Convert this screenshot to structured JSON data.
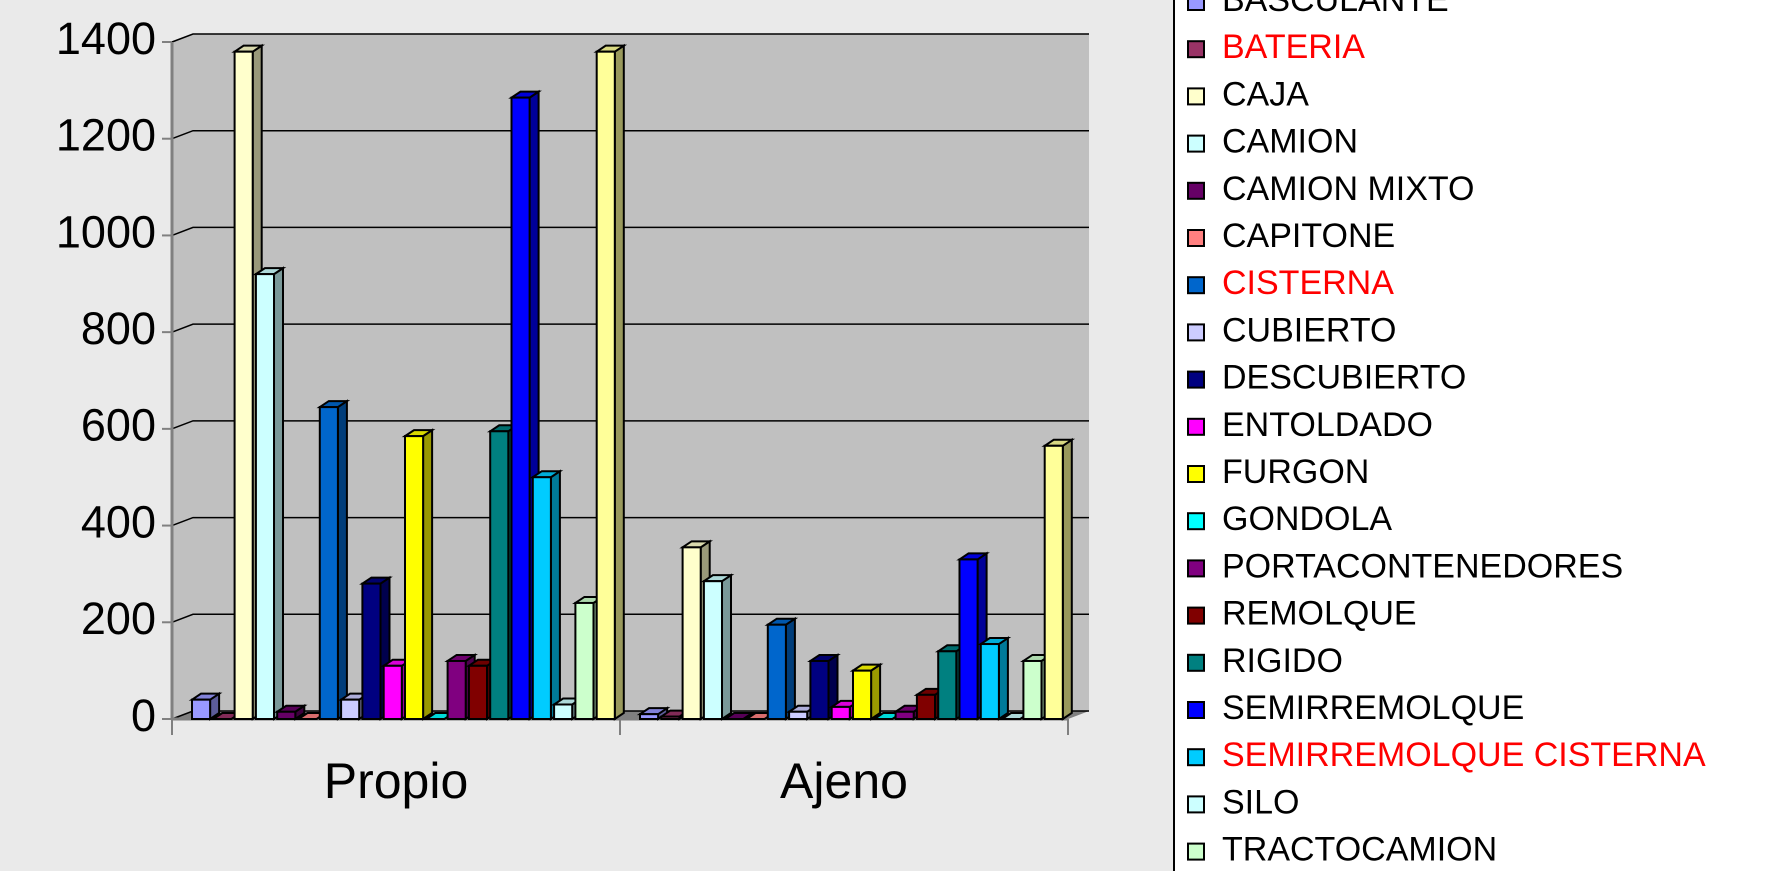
{
  "chart_data": {
    "type": "bar3d",
    "categories": [
      "Propio",
      "Ajeno"
    ],
    "ylim": [
      0,
      1400
    ],
    "yticks": [
      0,
      200,
      400,
      600,
      800,
      1000,
      1200,
      1400
    ],
    "grid": true,
    "series": [
      {
        "name": "BASCULANTE",
        "color": "#9999ff",
        "values": [
          40,
          10
        ]
      },
      {
        "name": "BATERIA",
        "color": "#993366",
        "label_color": "#ff0000",
        "values": [
          0,
          5
        ]
      },
      {
        "name": "CAJA",
        "color": "#ffffcc",
        "values": [
          1380,
          355
        ]
      },
      {
        "name": "CAMION",
        "color": "#ccffff",
        "values": [
          920,
          285
        ]
      },
      {
        "name": "CAMION MIXTO",
        "color": "#660066",
        "values": [
          15,
          0
        ]
      },
      {
        "name": "CAPITONE",
        "color": "#ff8080",
        "values": [
          0,
          0
        ]
      },
      {
        "name": "CISTERNA",
        "color": "#0066cc",
        "label_color": "#ff0000",
        "values": [
          645,
          195
        ]
      },
      {
        "name": "CUBIERTO",
        "color": "#ccccff",
        "values": [
          40,
          15
        ]
      },
      {
        "name": "DESCUBIERTO",
        "color": "#000080",
        "values": [
          280,
          120
        ]
      },
      {
        "name": "ENTOLDADO",
        "color": "#ff00ff",
        "values": [
          110,
          25
        ]
      },
      {
        "name": "FURGON",
        "color": "#ffff00",
        "values": [
          585,
          100
        ]
      },
      {
        "name": "GONDOLA",
        "color": "#00ffff",
        "values": [
          0,
          0
        ]
      },
      {
        "name": "PORTACONTENEDORES",
        "color": "#800080",
        "values": [
          120,
          15
        ]
      },
      {
        "name": "REMOLQUE",
        "color": "#800000",
        "values": [
          110,
          50
        ]
      },
      {
        "name": "RIGIDO",
        "color": "#008080",
        "values": [
          595,
          140
        ]
      },
      {
        "name": "SEMIRREMOLQUE",
        "color": "#0000ff",
        "values": [
          1285,
          330
        ]
      },
      {
        "name": "SEMIRREMOLQUE CISTERNA",
        "color": "#00ccff",
        "label_color": "#ff0000",
        "values": [
          500,
          155
        ]
      },
      {
        "name": "SILO",
        "color": "#ccffff",
        "values": [
          30,
          0
        ]
      },
      {
        "name": "TRACTOCAMION",
        "color": "#ccffcc",
        "values": [
          240,
          120
        ]
      },
      {
        "color": "#ffff99",
        "values": [
          1380,
          565
        ]
      }
    ]
  }
}
